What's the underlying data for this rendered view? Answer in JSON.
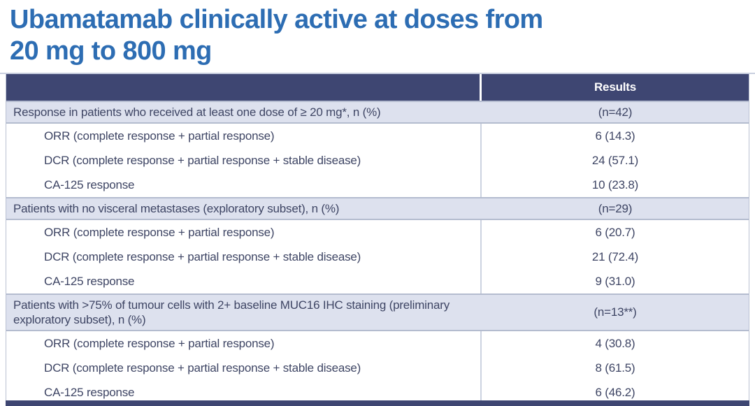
{
  "title": {
    "line1": "Ubamatamab clinically active at doses from",
    "line2": "20 mg to 800 mg"
  },
  "colors": {
    "title_blue": "#2d6db3",
    "header_navy": "#3e4672",
    "section_lavender": "#dde1ee",
    "body_text": "#3e4564",
    "column_divider": "#ccd2e0"
  },
  "table": {
    "header": {
      "results_label": "Results"
    },
    "sections": [
      {
        "label": "Response in patients who received at least one dose of ≥ 20 mg*, n (%)",
        "n": "(n=42)",
        "rows": [
          {
            "label": "ORR (complete response + partial response)",
            "value": "6 (14.3)"
          },
          {
            "label": "DCR (complete response + partial response + stable disease)",
            "value": "24 (57.1)"
          },
          {
            "label": "CA-125 response",
            "value": "10 (23.8)"
          }
        ]
      },
      {
        "label": "Patients with no visceral metastases (exploratory subset), n (%)",
        "n": "(n=29)",
        "rows": [
          {
            "label": "ORR (complete response + partial response)",
            "value": "6 (20.7)"
          },
          {
            "label": "DCR (complete response + partial response + stable disease)",
            "value": "21 (72.4)"
          },
          {
            "label": "CA-125 response",
            "value": "9 (31.0)"
          }
        ]
      },
      {
        "label": "Patients with >75% of tumour cells with 2+ baseline MUC16 IHC staining (preliminary exploratory subset), n (%)",
        "n": "(n=13**)",
        "rows": [
          {
            "label": "ORR (complete response + partial response)",
            "value": "4 (30.8)"
          },
          {
            "label": "DCR (complete response + partial response + stable disease)",
            "value": "8 (61.5)"
          },
          {
            "label": "CA-125 response",
            "value": "6 (46.2)"
          }
        ]
      }
    ]
  }
}
